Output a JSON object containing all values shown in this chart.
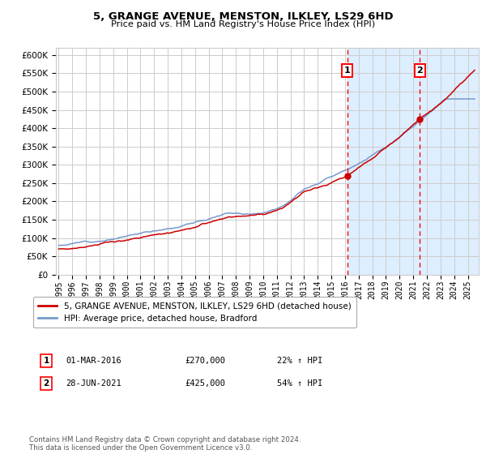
{
  "title": "5, GRANGE AVENUE, MENSTON, ILKLEY, LS29 6HD",
  "subtitle": "Price paid vs. HM Land Registry's House Price Index (HPI)",
  "ylim": [
    0,
    620000
  ],
  "yticks": [
    0,
    50000,
    100000,
    150000,
    200000,
    250000,
    300000,
    350000,
    400000,
    450000,
    500000,
    550000,
    600000
  ],
  "x_start_year": 1995,
  "x_end_year": 2025,
  "sale1_date": 2016.17,
  "sale1_price": 270000,
  "sale2_date": 2021.49,
  "sale2_price": 425000,
  "legend_line1": "5, GRANGE AVENUE, MENSTON, ILKLEY, LS29 6HD (detached house)",
  "legend_line2": "HPI: Average price, detached house, Bradford",
  "annotation1_label": "1",
  "annotation1_date": "01-MAR-2016",
  "annotation1_price": "£270,000",
  "annotation1_hpi": "22% ↑ HPI",
  "annotation2_label": "2",
  "annotation2_date": "28-JUN-2021",
  "annotation2_price": "£425,000",
  "annotation2_hpi": "54% ↑ HPI",
  "footer": "Contains HM Land Registry data © Crown copyright and database right 2024.\nThis data is licensed under the Open Government Licence v3.0.",
  "line_red": "#cc0000",
  "line_blue": "#7799cc",
  "bg_highlight": "#ddeeff",
  "grid_color": "#cccccc",
  "sale_marker_color": "#cc0000"
}
